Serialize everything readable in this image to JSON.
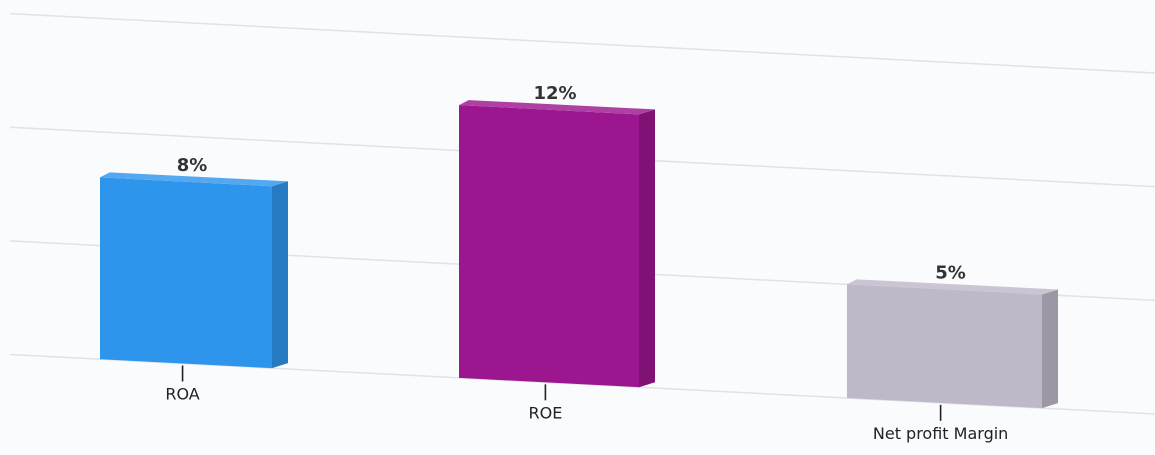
{
  "chart_data": {
    "type": "bar",
    "title": "",
    "xlabel": "",
    "ylabel": "",
    "ylim": [
      0,
      15
    ],
    "grid": true,
    "legend": "none",
    "categories": [
      "ROA",
      "ROE",
      "Net profit Margin"
    ],
    "values": [
      8,
      12,
      5
    ],
    "value_labels": [
      "8%",
      "12%",
      "5%"
    ],
    "colors": [
      "#2e95ec",
      "#9c168f",
      "#bfb8c9"
    ]
  }
}
